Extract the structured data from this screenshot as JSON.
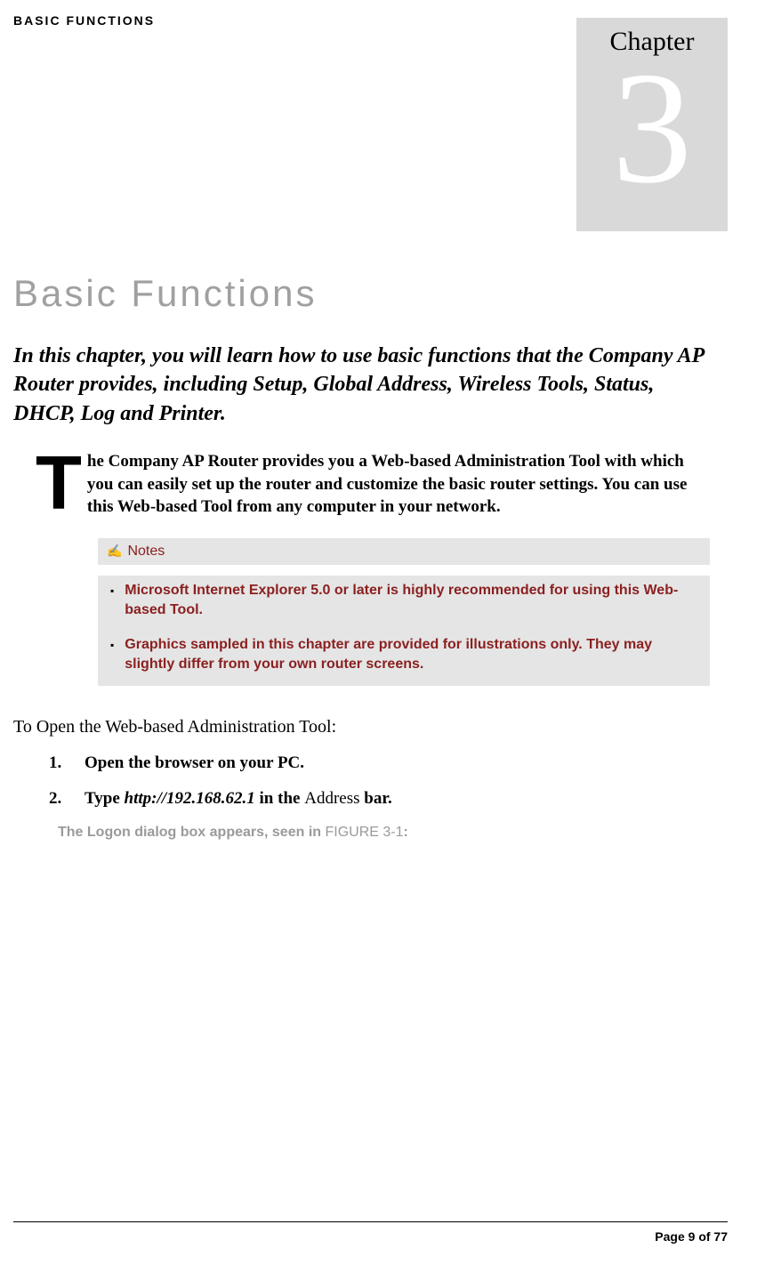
{
  "header": {
    "label": "BASIC FUNCTIONS"
  },
  "chapter_badge": {
    "word": "Chapter",
    "number": "3"
  },
  "title": "Basic Functions",
  "intro": "In this chapter, you will learn how to use basic functions that the Company AP Router provides, including Setup, Global Address, Wireless Tools, Status, DHCP, Log and Printer.",
  "drop_cap": "T",
  "body": "he Company AP Router provides you a Web-based Administration Tool with which you can easily set up the router and customize the basic router settings. You can use this Web-based Tool from any computer in your network.",
  "notes": {
    "header": "Notes",
    "icon_glyph": "✍",
    "items": [
      "Microsoft Internet Explorer 5.0 or later is highly recommended for using this Web-based Tool.",
      "Graphics sampled in this chapter are provided for illustrations only. They may slightly differ from your own router screens."
    ]
  },
  "section": {
    "lead": "To Open the Web-based Administration Tool:",
    "steps": [
      {
        "num": "1.",
        "text": "Open the browser on your PC."
      },
      {
        "num": "2.",
        "prefix": "Type ",
        "url": "http://192.168.62.1",
        "mid": " in the ",
        "normal": "Address",
        "suffix": " bar."
      }
    ],
    "figure_note_prefix": "The Logon dialog box appears, seen in ",
    "figure_ref": "FIGURE 3-1",
    "figure_note_suffix": ":"
  },
  "footer": {
    "page": "Page 9 of 77"
  },
  "colors": {
    "badge_bg": "#d9d9d9",
    "title_gray": "#a0a0a0",
    "notes_bg": "#e5e5e5",
    "notes_red": "#8b2020",
    "figure_gray": "#9a9a9a"
  }
}
